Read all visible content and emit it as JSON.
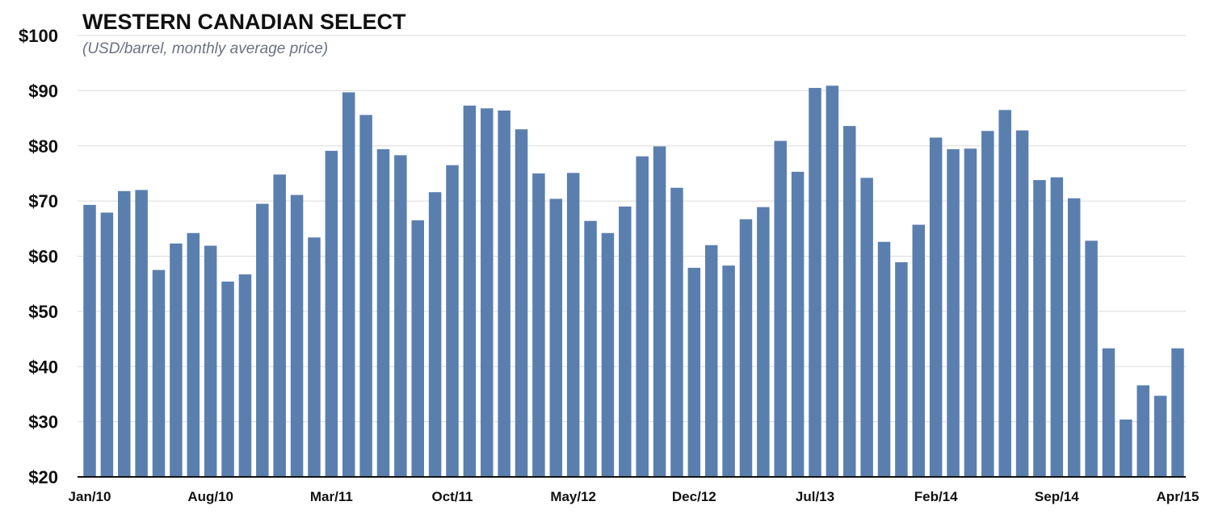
{
  "chart_data": {
    "type": "bar",
    "title": "WESTERN CANADIAN SELECT",
    "subtitle": "(USD/barrel, monthly average price)",
    "ylim": [
      20,
      100
    ],
    "yticks": [
      20,
      30,
      40,
      50,
      60,
      70,
      80,
      90,
      100
    ],
    "ytick_labels": [
      "$20",
      "$30",
      "$40",
      "$50",
      "$60",
      "$70",
      "$80",
      "$90",
      "$100"
    ],
    "grid": true,
    "bar_color": "#5a7faf",
    "categories": [
      "Jan/10",
      "Feb/10",
      "Mar/10",
      "Apr/10",
      "May/10",
      "Jun/10",
      "Jul/10",
      "Aug/10",
      "Sep/10",
      "Oct/10",
      "Nov/10",
      "Dec/10",
      "Jan/11",
      "Feb/11",
      "Mar/11",
      "Apr/11",
      "May/11",
      "Jun/11",
      "Jul/11",
      "Aug/11",
      "Sep/11",
      "Oct/11",
      "Nov/11",
      "Dec/11",
      "Jan/12",
      "Feb/12",
      "Mar/12",
      "Apr/12",
      "May/12",
      "Jun/12",
      "Jul/12",
      "Aug/12",
      "Sep/12",
      "Oct/12",
      "Nov/12",
      "Dec/12",
      "Jan/13",
      "Feb/13",
      "Mar/13",
      "Apr/13",
      "May/13",
      "Jun/13",
      "Jul/13",
      "Aug/13",
      "Sep/13",
      "Oct/13",
      "Nov/13",
      "Dec/13",
      "Jan/14",
      "Feb/14",
      "Mar/14",
      "Apr/14",
      "May/14",
      "Jun/14",
      "Jul/14",
      "Aug/14",
      "Sep/14",
      "Oct/14",
      "Nov/14",
      "Dec/14",
      "Jan/15",
      "Feb/15",
      "Mar/15",
      "Apr/15"
    ],
    "values": [
      69.3,
      67.9,
      71.8,
      72.0,
      57.5,
      62.3,
      64.2,
      61.9,
      55.4,
      56.7,
      69.5,
      74.8,
      71.1,
      63.4,
      79.1,
      89.7,
      85.6,
      79.4,
      78.3,
      66.5,
      71.6,
      76.5,
      87.3,
      86.8,
      86.4,
      83.0,
      75.0,
      70.4,
      75.1,
      66.4,
      64.2,
      69.0,
      78.1,
      79.9,
      72.4,
      57.9,
      62.0,
      58.3,
      66.7,
      68.9,
      80.9,
      75.3,
      90.5,
      90.9,
      83.6,
      74.2,
      62.6,
      58.9,
      65.7,
      81.5,
      79.4,
      79.5,
      82.7,
      86.5,
      82.8,
      73.8,
      74.3,
      70.5,
      62.8,
      43.3,
      30.4,
      36.6,
      34.7,
      43.3
    ],
    "xtick_labels": [
      {
        "index": 0,
        "label": "Jan/10"
      },
      {
        "index": 7,
        "label": "Aug/10"
      },
      {
        "index": 14,
        "label": "Mar/11"
      },
      {
        "index": 21,
        "label": "Oct/11"
      },
      {
        "index": 28,
        "label": "May/12"
      },
      {
        "index": 35,
        "label": "Dec/12"
      },
      {
        "index": 42,
        "label": "Jul/13"
      },
      {
        "index": 49,
        "label": "Feb/14"
      },
      {
        "index": 56,
        "label": "Sep/14"
      },
      {
        "index": 63,
        "label": "Apr/15"
      }
    ]
  }
}
